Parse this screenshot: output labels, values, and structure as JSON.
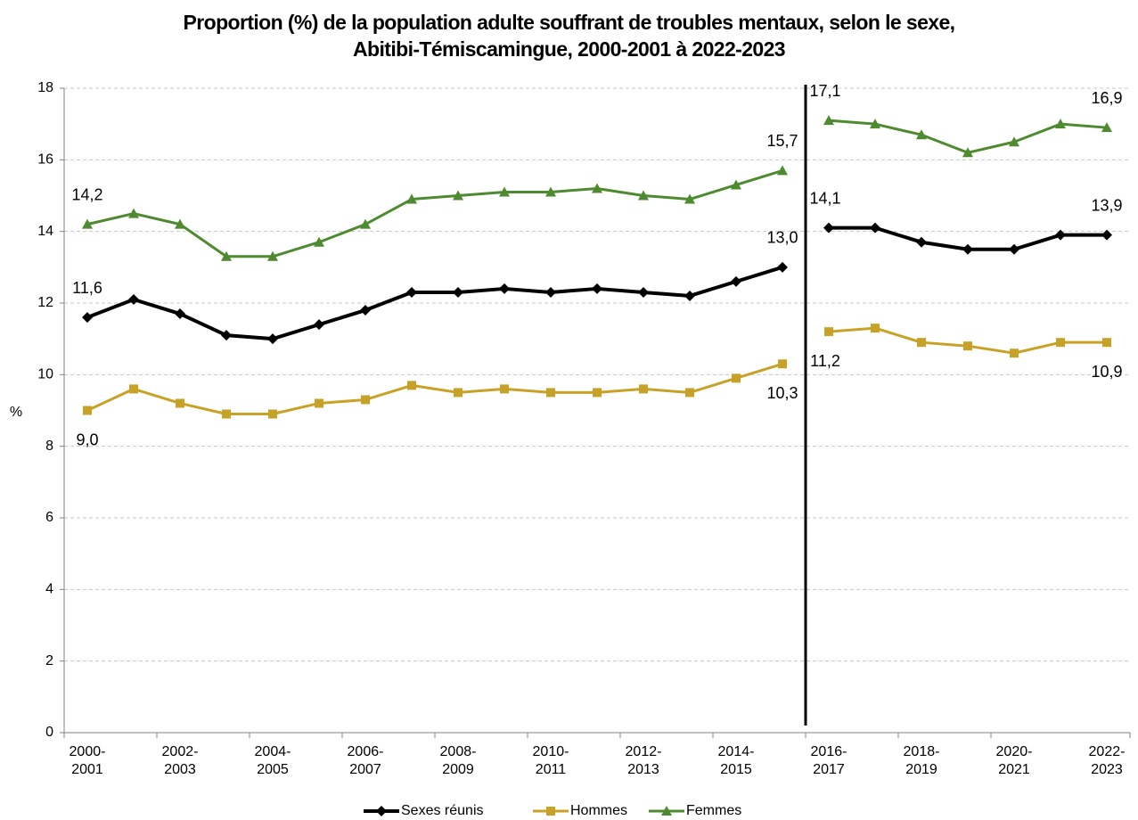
{
  "chart_data": {
    "type": "line",
    "title": "Proportion (%) de la population adulte souffrant de troubles mentaux, selon le sexe,\nAbitibi-Témiscamingue, 2000-2001 à 2022-2023",
    "y_label": "%",
    "categories": [
      "2000-\n2001",
      null,
      "2002-\n2003",
      null,
      "2004-\n2005",
      null,
      "2006-\n2007",
      null,
      "2008-\n2009",
      null,
      "2010-\n2011",
      null,
      "2012-\n2013",
      null,
      "2014-\n2015",
      null,
      "2016-\n2017",
      null,
      "2018-\n2019",
      null,
      "2020-\n2021",
      null,
      "2022-\n2023"
    ],
    "series_break": 16,
    "ylim": [
      0,
      18
    ],
    "yticks": [
      0,
      2,
      4,
      6,
      8,
      10,
      12,
      14,
      16,
      18
    ],
    "grid": true,
    "legend": "bottom",
    "series": [
      {
        "name": "Sexes réunis",
        "color": "#000000",
        "marker": "diamond",
        "label_side": "above",
        "values": [
          11.6,
          12.1,
          11.7,
          11.1,
          11.0,
          11.4,
          11.8,
          12.3,
          12.3,
          12.4,
          12.3,
          12.4,
          12.3,
          12.2,
          12.6,
          13.0,
          14.1,
          14.1,
          13.7,
          13.5,
          13.5,
          13.9,
          13.9
        ],
        "value_labels": [
          "11,6",
          null,
          null,
          null,
          null,
          null,
          null,
          null,
          null,
          null,
          null,
          null,
          null,
          null,
          null,
          "13,0",
          "14,1",
          null,
          null,
          null,
          null,
          null,
          "13,9"
        ]
      },
      {
        "name": "Hommes",
        "color": "#c8a227",
        "marker": "square",
        "label_side": "below",
        "values": [
          9.0,
          9.6,
          9.2,
          8.9,
          8.9,
          9.2,
          9.3,
          9.7,
          9.5,
          9.6,
          9.5,
          9.5,
          9.6,
          9.5,
          9.9,
          10.3,
          11.2,
          11.3,
          10.9,
          10.8,
          10.6,
          10.9,
          10.9
        ],
        "value_labels": [
          "9,0",
          null,
          null,
          null,
          null,
          null,
          null,
          null,
          null,
          null,
          null,
          null,
          null,
          null,
          null,
          "10,3",
          "11,2",
          null,
          null,
          null,
          null,
          null,
          "10,9"
        ]
      },
      {
        "name": "Femmes",
        "color": "#4e8a2f",
        "marker": "triangle",
        "label_side": "above",
        "values": [
          14.2,
          14.5,
          14.2,
          13.3,
          13.3,
          13.7,
          14.2,
          14.9,
          15.0,
          15.1,
          15.1,
          15.2,
          15.0,
          14.9,
          15.3,
          15.7,
          17.1,
          17.0,
          16.7,
          16.2,
          16.5,
          17.0,
          16.9
        ],
        "value_labels": [
          "14,2",
          null,
          null,
          null,
          null,
          null,
          null,
          null,
          null,
          null,
          null,
          null,
          null,
          null,
          null,
          "15,7",
          "17,1",
          null,
          null,
          null,
          null,
          null,
          "16,9"
        ]
      }
    ]
  }
}
